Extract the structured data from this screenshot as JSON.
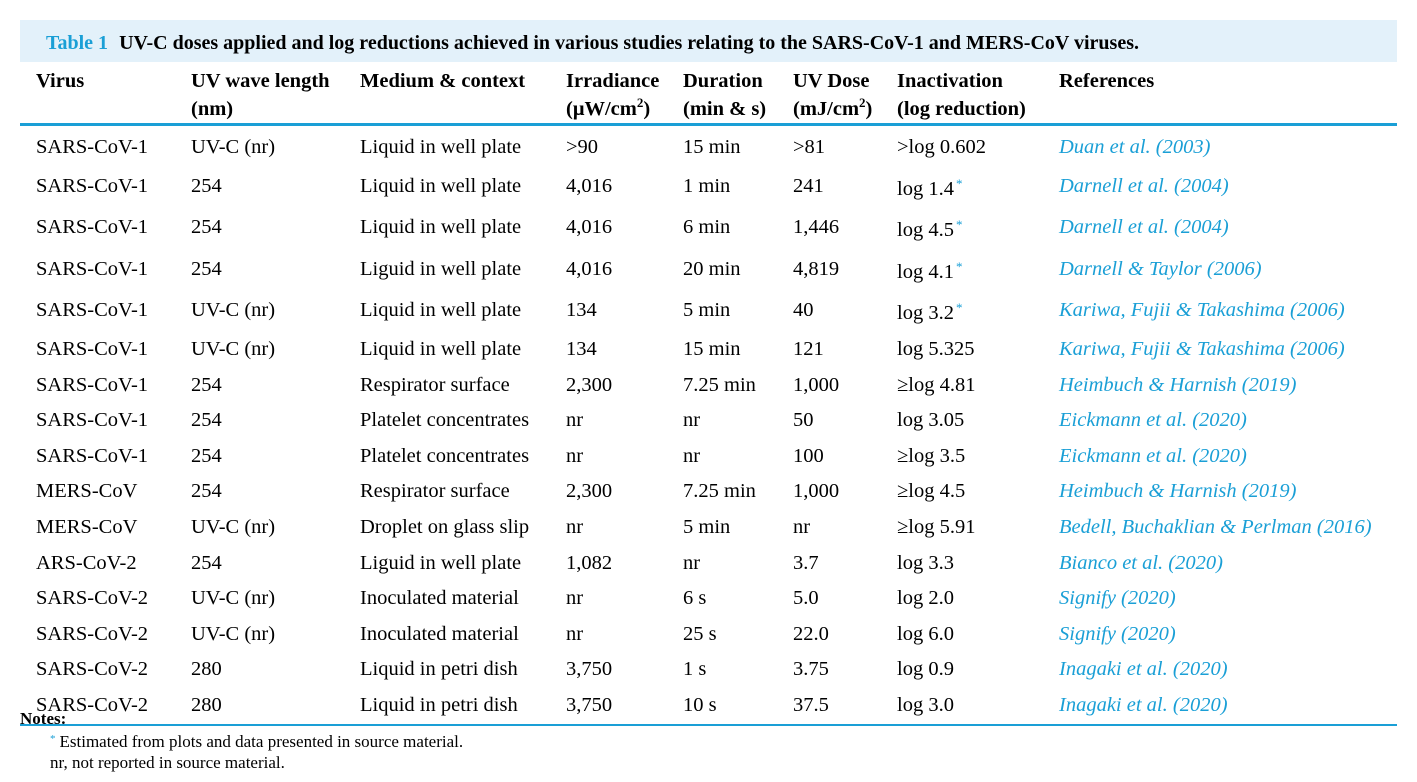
{
  "caption": {
    "label": "Table 1",
    "text": "UV-C doses applied and log reductions achieved in various studies relating to the SARS-CoV-1 and MERS-CoV viruses."
  },
  "colors": {
    "accent": "#1a9fd6",
    "caption_bg": "#e3f1fa"
  },
  "headers": [
    {
      "line1": "Virus",
      "line2": ""
    },
    {
      "line1": "UV wave length",
      "line2": "(nm)"
    },
    {
      "line1": "Medium & context",
      "line2": ""
    },
    {
      "line1": "Irradiance",
      "line2_pre": "(μW/cm",
      "line2_sup": "2",
      "line2_post": ")"
    },
    {
      "line1": "Duration",
      "line2": "(min & s)"
    },
    {
      "line1": "UV Dose",
      "line2_pre": "(mJ/cm",
      "line2_sup": "2",
      "line2_post": ")"
    },
    {
      "line1": "Inactivation",
      "line2": "(log reduction)"
    },
    {
      "line1": "References",
      "line2": ""
    }
  ],
  "rows": [
    {
      "virus": "SARS-CoV-1",
      "wavelength": "UV-C (nr)",
      "medium": "Liquid in well plate",
      "irradiance": ">90",
      "duration": "15 min",
      "dose": ">81",
      "inactivation": ">log 0.602",
      "estimated": false,
      "reference": "Duan et al. (2003)"
    },
    {
      "virus": "SARS-CoV-1",
      "wavelength": "254",
      "medium": "Liquid in well plate",
      "irradiance": "4,016",
      "duration": "1 min",
      "dose": "241",
      "inactivation": "log 1.4",
      "estimated": true,
      "reference": "Darnell et al. (2004)"
    },
    {
      "virus": "SARS-CoV-1",
      "wavelength": "254",
      "medium": "Liquid in well plate",
      "irradiance": "4,016",
      "duration": "6 min",
      "dose": "1,446",
      "inactivation": "log 4.5",
      "estimated": true,
      "reference": "Darnell et al. (2004)"
    },
    {
      "virus": "SARS-CoV-1",
      "wavelength": "254",
      "medium": "Liguid in well plate",
      "irradiance": "4,016",
      "duration": "20 min",
      "dose": "4,819",
      "inactivation": "log 4.1",
      "estimated": true,
      "reference": "Darnell & Taylor (2006)"
    },
    {
      "virus": "SARS-CoV-1",
      "wavelength": "UV-C (nr)",
      "medium": "Liquid in well plate",
      "irradiance": "134",
      "duration": "5 min",
      "dose": "40",
      "inactivation": "log 3.2",
      "estimated": true,
      "reference": "Kariwa, Fujii & Takashima (2006)"
    },
    {
      "virus": "SARS-CoV-1",
      "wavelength": "UV-C (nr)",
      "medium": "Liquid in well plate",
      "irradiance": "134",
      "duration": "15 min",
      "dose": "121",
      "inactivation": "log 5.325",
      "estimated": false,
      "reference": "Kariwa, Fujii & Takashima (2006)"
    },
    {
      "virus": "SARS-CoV-1",
      "wavelength": "254",
      "medium": "Respirator surface",
      "irradiance": "2,300",
      "duration": "7.25 min",
      "dose": "1,000",
      "inactivation": "≥log 4.81",
      "estimated": false,
      "reference": "Heimbuch & Harnish (2019)"
    },
    {
      "virus": "SARS-CoV-1",
      "wavelength": "254",
      "medium": "Platelet concentrates",
      "irradiance": "nr",
      "duration": "nr",
      "dose": "50",
      "inactivation": "log 3.05",
      "estimated": false,
      "reference": "Eickmann et al. (2020)"
    },
    {
      "virus": "SARS-CoV-1",
      "wavelength": "254",
      "medium": "Platelet concentrates",
      "irradiance": "nr",
      "duration": "nr",
      "dose": "100",
      "inactivation": "≥log 3.5",
      "estimated": false,
      "reference": "Eickmann et al. (2020)"
    },
    {
      "virus": "MERS-CoV",
      "wavelength": "254",
      "medium": "Respirator surface",
      "irradiance": "2,300",
      "duration": "7.25 min",
      "dose": "1,000",
      "inactivation": "≥log 4.5",
      "estimated": false,
      "reference": "Heimbuch & Harnish (2019)"
    },
    {
      "virus": "MERS-CoV",
      "wavelength": "UV-C (nr)",
      "medium": "Droplet on glass slip",
      "irradiance": "nr",
      "duration": "5 min",
      "dose": "nr",
      "inactivation": "≥log 5.91",
      "estimated": false,
      "reference": "Bedell, Buchaklian & Perlman (2016)"
    },
    {
      "virus": "ARS-CoV-2",
      "wavelength": "254",
      "medium": "Liguid in well plate",
      "irradiance": "1,082",
      "duration": "nr",
      "dose": "3.7",
      "inactivation": "log 3.3",
      "estimated": false,
      "reference": "Bianco et al. (2020)"
    },
    {
      "virus": "SARS-CoV-2",
      "wavelength": "UV-C (nr)",
      "medium": "Inoculated material",
      "irradiance": "nr",
      "duration": "6 s",
      "dose": "5.0",
      "inactivation": "log 2.0",
      "estimated": false,
      "reference": "Signify (2020)"
    },
    {
      "virus": "SARS-CoV-2",
      "wavelength": "UV-C (nr)",
      "medium": "Inoculated material",
      "irradiance": "nr",
      "duration": "25 s",
      "dose": "22.0",
      "inactivation": "log 6.0",
      "estimated": false,
      "reference": "Signify (2020)"
    },
    {
      "virus": "SARS-CoV-2",
      "wavelength": "280",
      "medium": "Liquid in petri dish",
      "irradiance": "3,750",
      "duration": "1 s",
      "dose": "3.75",
      "inactivation": "log 0.9",
      "estimated": false,
      "reference": "Inagaki et al. (2020)"
    },
    {
      "virus": "SARS-CoV-2",
      "wavelength": "280",
      "medium": "Liquid in petri dish",
      "irradiance": "3,750",
      "duration": "10 s",
      "dose": "37.5",
      "inactivation": "log 3.0",
      "estimated": false,
      "reference": "Inagaki et al. (2020)"
    }
  ],
  "notes": {
    "title": "Notes:",
    "star_marker": "*",
    "estimated": "Estimated from plots and data presented in source material.",
    "nr": "nr, not reported in source material."
  }
}
